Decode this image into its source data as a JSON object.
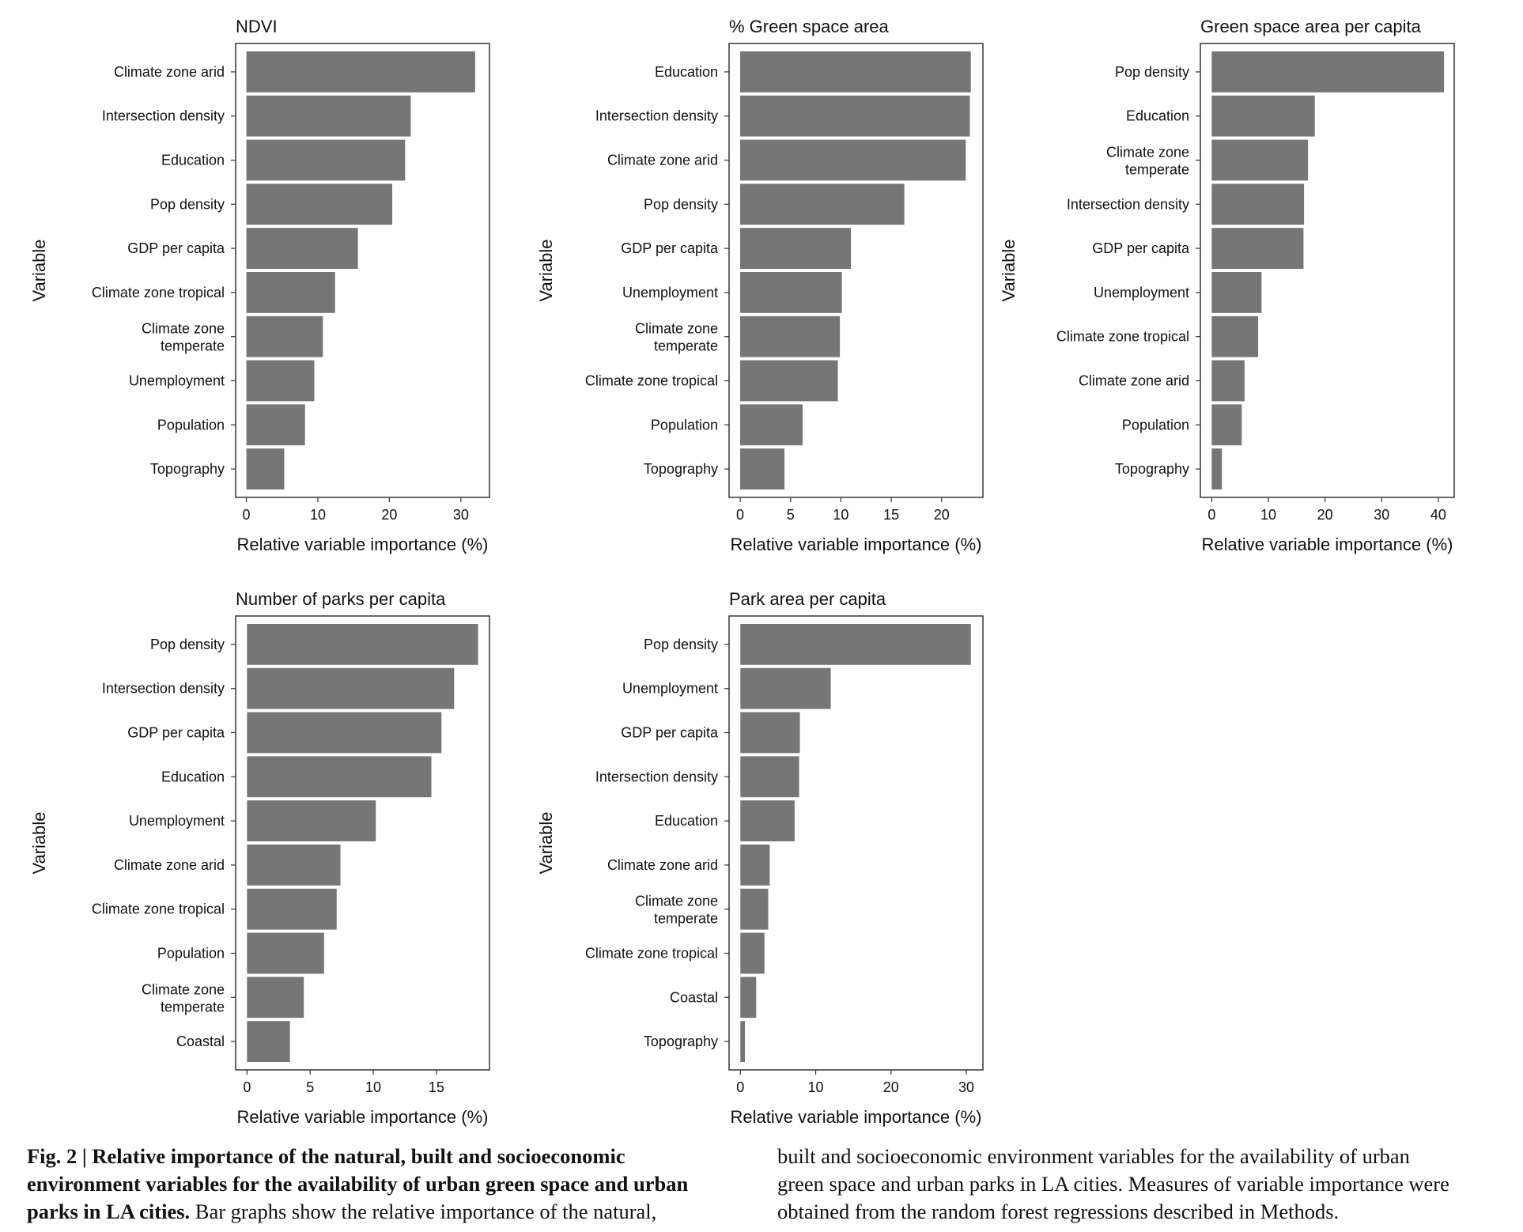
{
  "chart_data": [
    {
      "type": "bar",
      "orientation": "horizontal",
      "title": "NDVI",
      "xlabel": "Relative variable importance (%)",
      "ylabel": "Variable",
      "categories": [
        "Climate zone arid",
        "Intersection density",
        "Education",
        "Pop density",
        "GDP per capita",
        "Climate zone tropical",
        "Climate zone\ntemperate",
        "Unemployment",
        "Population",
        "Topography"
      ],
      "values": [
        32.0,
        23.0,
        22.2,
        20.4,
        15.6,
        12.4,
        10.7,
        9.5,
        8.2,
        5.3
      ],
      "xlim": [
        -1.5,
        34
      ],
      "xticks": [
        0,
        10,
        20,
        30
      ],
      "bar_color": "#767676"
    },
    {
      "type": "bar",
      "orientation": "horizontal",
      "title": "% Green space area",
      "xlabel": "Relative variable importance (%)",
      "ylabel": "Variable",
      "categories": [
        "Education",
        "Intersection density",
        "Climate zone arid",
        "Pop density",
        "GDP per capita",
        "Unemployment",
        "Climate zone\ntemperate",
        "Climate zone tropical",
        "Population",
        "Topography"
      ],
      "values": [
        22.9,
        22.8,
        22.4,
        16.3,
        11.0,
        10.1,
        9.9,
        9.7,
        6.2,
        4.4
      ],
      "xlim": [
        -1.1,
        24.1
      ],
      "xticks": [
        0,
        5,
        10,
        15,
        20
      ],
      "bar_color": "#767676"
    },
    {
      "type": "bar",
      "orientation": "horizontal",
      "title": "Green space area per capita",
      "xlabel": "Relative variable importance (%)",
      "ylabel": "Variable",
      "categories": [
        "Pop density",
        "Education",
        "Climate zone\ntemperate",
        "Intersection density",
        "GDP per capita",
        "Unemployment",
        "Climate zone tropical",
        "Climate zone arid",
        "Population",
        "Topography"
      ],
      "values": [
        41.0,
        18.2,
        17.0,
        16.3,
        16.2,
        8.8,
        8.2,
        5.8,
        5.3,
        1.8
      ],
      "xlim": [
        -2,
        42.8
      ],
      "xticks": [
        0,
        10,
        20,
        30,
        40
      ],
      "bar_color": "#767676"
    },
    {
      "type": "bar",
      "orientation": "horizontal",
      "title": "Number of parks per capita",
      "xlabel": "Relative variable importance (%)",
      "ylabel": "Variable",
      "categories": [
        "Pop density",
        "Intersection density",
        "GDP per capita",
        "Education",
        "Unemployment",
        "Climate zone arid",
        "Climate zone tropical",
        "Population",
        "Climate zone\ntemperate",
        "Coastal"
      ],
      "values": [
        18.3,
        16.4,
        15.4,
        14.6,
        10.2,
        7.4,
        7.1,
        6.1,
        4.5,
        3.4
      ],
      "xlim": [
        -0.9,
        19.2
      ],
      "xticks": [
        0,
        5,
        10,
        15
      ],
      "bar_color": "#767676"
    },
    {
      "type": "bar",
      "orientation": "horizontal",
      "title": "Park area per capita",
      "xlabel": "Relative variable importance (%)",
      "ylabel": "Variable",
      "categories": [
        "Pop density",
        "Unemployment",
        "GDP per capita",
        "Intersection density",
        "Education",
        "Climate zone arid",
        "Climate zone\ntemperate",
        "Climate zone tropical",
        "Coastal",
        "Topography"
      ],
      "values": [
        30.6,
        12.0,
        7.9,
        7.8,
        7.2,
        3.9,
        3.7,
        3.2,
        2.1,
        0.6
      ],
      "xlim": [
        -1.5,
        32.2
      ],
      "xticks": [
        0,
        10,
        20,
        30
      ],
      "bar_color": "#767676"
    }
  ],
  "caption": {
    "label": "Fig. 2 | ",
    "bold_text": "Relative importance of the natural, built and socioeconomic environment variables for the availability of urban green space and urban parks in LA cities.",
    "line1_bold": "Fig. 2 | Relative importance of the natural, built and socioeconomic",
    "line2_bold": "environment variables for the availability of urban green space and urban",
    "line3_bold": "parks in LA cities.",
    "line3_normal": " Bar graphs show the relative importance of the natural,",
    "line4": "built and socioeconomic environment variables for the availability of urban",
    "line5": "green space and urban parks in LA cities. Measures of variable importance were",
    "line6": "obtained from the random forest regressions described in Methods."
  }
}
